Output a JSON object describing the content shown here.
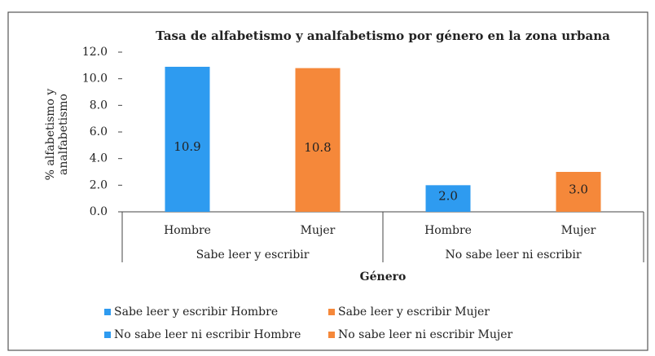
{
  "chart_data": {
    "type": "bar",
    "title": "Tasa de alfabetismo y analfabetismo por género en la zona urbana",
    "ylabel": [
      "% alfabetismo y",
      "analfabetismo"
    ],
    "xlabel": "Género",
    "categories": [
      "Hombre",
      "Mujer",
      "Hombre",
      "Mujer"
    ],
    "group_labels": [
      "Sabe leer y escribir",
      "No sabe leer ni escribir"
    ],
    "series": [
      {
        "name": "Sabe leer y escribir Hombre",
        "color": "#2e9bf0",
        "values": [
          10.9,
          null,
          null,
          null
        ],
        "value_labels": [
          "10.9",
          null,
          null,
          null
        ]
      },
      {
        "name": "Sabe leer y escribir Mujer",
        "color": "#f5883a",
        "values": [
          null,
          10.8,
          null,
          null
        ],
        "value_labels": [
          null,
          "10.8",
          null,
          null
        ]
      },
      {
        "name": "No sabe leer ni escribir Hombre",
        "color": "#2e9bf0",
        "values": [
          null,
          null,
          2.0,
          null
        ],
        "value_labels": [
          null,
          null,
          "2.0",
          null
        ]
      },
      {
        "name": "No sabe leer ni escribir Mujer",
        "color": "#f5883a",
        "values": [
          null,
          null,
          null,
          3.0
        ],
        "value_labels": [
          null,
          null,
          null,
          "3.0"
        ]
      }
    ],
    "ylim": [
      0,
      12
    ],
    "yticks": [
      {
        "value": 0,
        "label": "0.0"
      },
      {
        "value": 2,
        "label": "2.0"
      },
      {
        "value": 4,
        "label": "4.0"
      },
      {
        "value": 6,
        "label": "6.0"
      },
      {
        "value": 8,
        "label": "8.0"
      },
      {
        "value": 10,
        "label": "10.0"
      },
      {
        "value": 12,
        "label": "12.0"
      }
    ],
    "legend": "bottom"
  }
}
